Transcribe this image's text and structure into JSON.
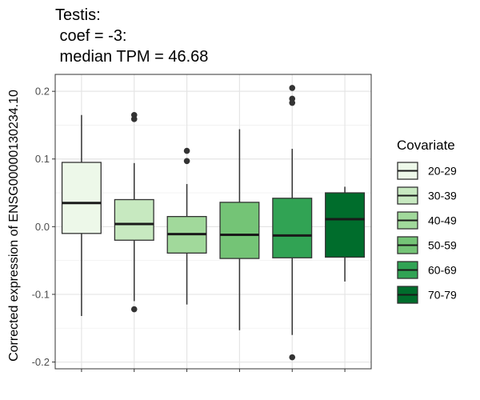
{
  "chart_data": {
    "type": "box",
    "title_lines": [
      "Testis:",
      " coef = -3:",
      " median TPM = 46.68"
    ],
    "xlabel": "",
    "ylabel": "Corrected expression of ENSG00000130234.10",
    "ylim": [
      -0.21,
      0.225
    ],
    "y_ticks": [
      -0.2,
      -0.1,
      0.0,
      0.1,
      0.2
    ],
    "y_tick_labels": [
      "-0.2",
      "-0.1",
      "0.0",
      "0.1",
      "0.2"
    ],
    "grid": true,
    "legend": {
      "title": "Covariate",
      "position": "right"
    },
    "groups": [
      {
        "label": "20-29",
        "color": "#edf8e9",
        "whisker_low": -0.132,
        "q1": -0.01,
        "median": 0.035,
        "q3": 0.095,
        "whisker_high": 0.165,
        "outliers": []
      },
      {
        "label": "30-39",
        "color": "#c7e9c0",
        "whisker_low": -0.11,
        "q1": -0.02,
        "median": 0.004,
        "q3": 0.04,
        "whisker_high": 0.094,
        "outliers": [
          0.165,
          0.159,
          -0.122
        ]
      },
      {
        "label": "40-49",
        "color": "#a1d99b",
        "whisker_low": -0.115,
        "q1": -0.039,
        "median": -0.011,
        "q3": 0.015,
        "whisker_high": 0.063,
        "outliers": [
          0.112,
          0.097
        ]
      },
      {
        "label": "50-59",
        "color": "#74c476",
        "whisker_low": -0.153,
        "q1": -0.047,
        "median": -0.012,
        "q3": 0.036,
        "whisker_high": 0.144,
        "outliers": []
      },
      {
        "label": "60-69",
        "color": "#31a354",
        "whisker_low": -0.16,
        "q1": -0.046,
        "median": -0.013,
        "q3": 0.042,
        "whisker_high": 0.115,
        "outliers": [
          0.205,
          0.189,
          0.183,
          -0.193
        ]
      },
      {
        "label": "70-79",
        "color": "#006d2c",
        "whisker_low": -0.081,
        "q1": -0.045,
        "median": 0.011,
        "q3": 0.05,
        "whisker_high": 0.059,
        "outliers": []
      }
    ]
  }
}
